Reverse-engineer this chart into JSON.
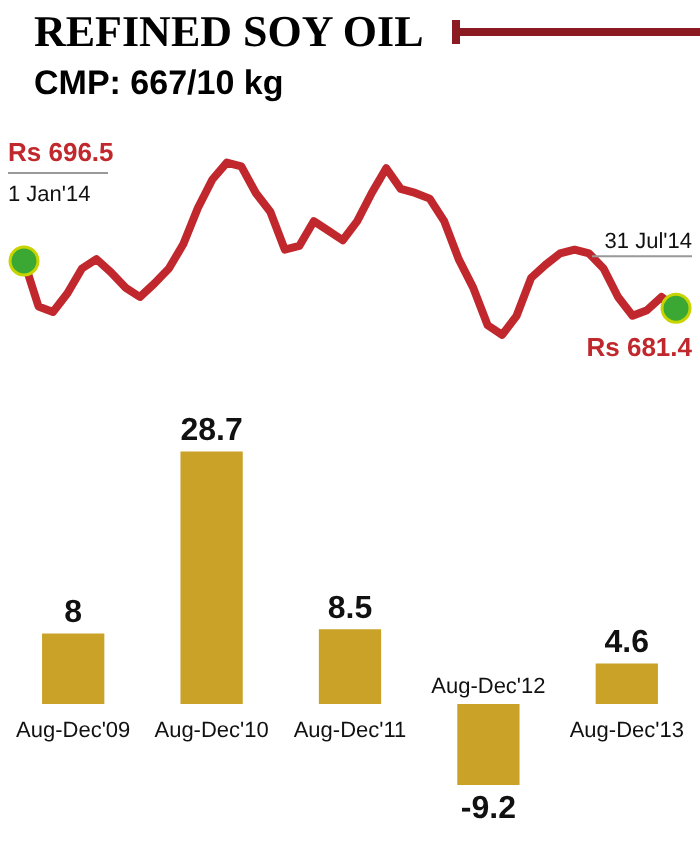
{
  "chart_data": [
    {
      "type": "line",
      "title": "REFINED SOY OIL",
      "subtitle": "CMP: 667/10 kg",
      "categories": [
        null,
        null,
        null,
        null,
        null,
        null,
        null,
        null,
        null,
        null,
        null,
        null,
        null,
        null,
        null,
        null,
        null,
        null,
        null,
        null,
        null,
        null,
        null,
        null,
        null,
        null,
        null,
        null,
        null,
        null,
        null,
        null,
        null,
        null,
        null,
        null,
        null,
        null,
        null,
        null,
        null,
        null,
        null,
        null,
        null,
        null
      ],
      "series": [
        {
          "color": "#c0282d",
          "values": [
            696.5,
            682.0,
            680.2,
            686.2,
            694.1,
            697.1,
            692.9,
            688.0,
            685.0,
            689.3,
            694.1,
            701.9,
            713.4,
            722.5,
            727.9,
            726.7,
            718.2,
            712.2,
            700.1,
            701.3,
            709.2,
            706.2,
            703.1,
            709.2,
            718.2,
            726.1,
            719.5,
            718.2,
            716.4,
            709.2,
            697.1,
            688.0,
            676.0,
            672.9,
            679.0,
            691.1,
            695.3,
            698.9,
            700.1,
            698.9,
            694.1,
            685.0,
            679.0,
            680.8,
            685.0,
            681.4
          ],
          "value_labels": [
            "Rs 696.5",
            null,
            null,
            null,
            null,
            null,
            null,
            null,
            null,
            null,
            null,
            null,
            null,
            null,
            null,
            null,
            null,
            null,
            null,
            null,
            null,
            null,
            null,
            null,
            null,
            null,
            null,
            null,
            null,
            null,
            null,
            null,
            null,
            null,
            null,
            null,
            null,
            null,
            null,
            null,
            null,
            null,
            null,
            null,
            null,
            "Rs 681.4"
          ]
        }
      ],
      "annotations": [
        "1 Jan'14",
        "31 Jul'14"
      ],
      "legend": false
    },
    {
      "type": "bar",
      "categories": [
        "Aug-Dec'09",
        "Aug-Dec'10",
        "Aug-Dec'11",
        "Aug-Dec'12",
        "Aug-Dec'13"
      ],
      "values": [
        8,
        28.7,
        8.5,
        -9.2,
        4.6
      ],
      "color": "#c9a227",
      "data_labels": true,
      "legend": false
    }
  ]
}
